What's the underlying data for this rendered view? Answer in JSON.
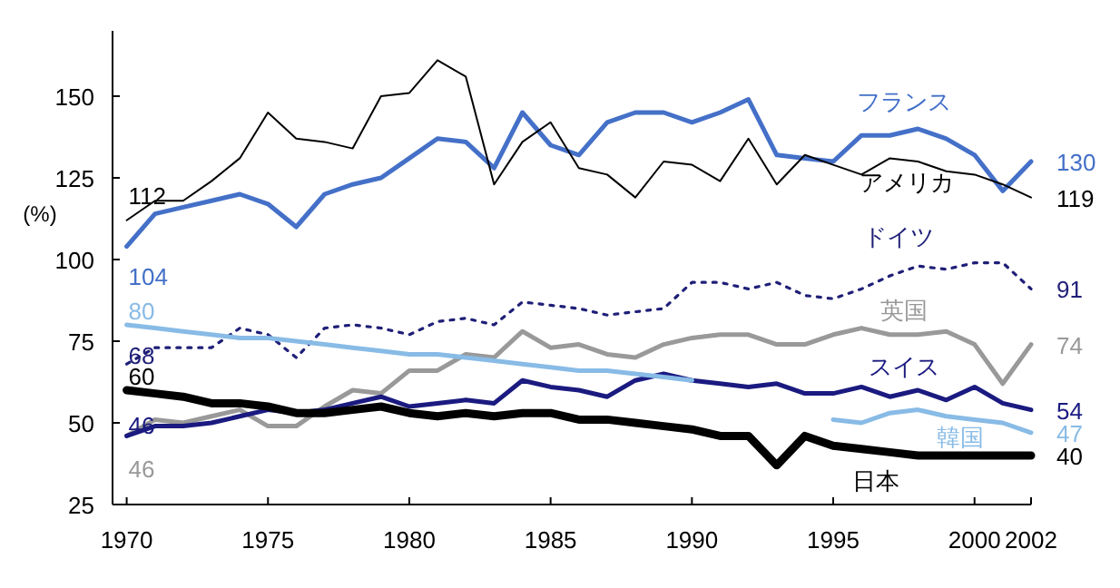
{
  "chart_data": {
    "type": "line",
    "ylabel": "(%)",
    "x": [
      1970,
      1971,
      1972,
      1973,
      1974,
      1975,
      1976,
      1977,
      1978,
      1979,
      1980,
      1981,
      1982,
      1983,
      1984,
      1985,
      1986,
      1987,
      1988,
      1989,
      1990,
      1991,
      1992,
      1993,
      1994,
      1995,
      1996,
      1997,
      1998,
      1999,
      2000,
      2001,
      2002
    ],
    "xlim": [
      1969.5,
      2002
    ],
    "xticks": [
      1970,
      1975,
      1980,
      1985,
      1990,
      1995,
      2000,
      2002
    ],
    "ylim": [
      25,
      170
    ],
    "yticks": [
      25,
      50,
      75,
      100,
      125,
      150
    ],
    "grid": false,
    "legend": false,
    "series": [
      {
        "name": "フランス",
        "color": "#4470c8",
        "line_style": "solid",
        "values": [
          104,
          114,
          116,
          118,
          120,
          117,
          110,
          120,
          123,
          125,
          131,
          137,
          136,
          128,
          145,
          135,
          132,
          142,
          145,
          145,
          142,
          145,
          149,
          132,
          131,
          130,
          138,
          138,
          140,
          137,
          132,
          121,
          130
        ],
        "value_labels": [
          "104",
          null,
          null,
          null,
          null,
          null,
          null,
          null,
          null,
          null,
          null,
          null,
          null,
          null,
          null,
          null,
          null,
          null,
          null,
          null,
          null,
          null,
          null,
          null,
          null,
          null,
          null,
          null,
          null,
          null,
          null,
          null,
          "130"
        ]
      },
      {
        "name": "アメリカ",
        "color": "#000000",
        "line_style": "solid",
        "values": [
          112,
          118,
          118,
          124,
          131,
          145,
          137,
          136,
          134,
          150,
          151,
          161,
          156,
          123,
          136,
          142,
          128,
          126,
          119,
          130,
          129,
          124,
          137,
          123,
          132,
          129,
          126,
          131,
          130,
          127,
          126,
          123,
          119
        ],
        "value_labels": [
          "112",
          null,
          null,
          null,
          null,
          null,
          null,
          null,
          null,
          null,
          null,
          null,
          null,
          null,
          null,
          null,
          null,
          null,
          null,
          null,
          null,
          null,
          null,
          null,
          null,
          null,
          null,
          null,
          null,
          null,
          null,
          null,
          "119"
        ]
      },
      {
        "name": "ドイツ",
        "color": "#1f1f78",
        "line_style": "dotted",
        "values": [
          68,
          73,
          73,
          73,
          79,
          77,
          70,
          79,
          80,
          79,
          77,
          81,
          82,
          80,
          87,
          86,
          85,
          83,
          84,
          85,
          93,
          93,
          91,
          93,
          89,
          88,
          91,
          95,
          98,
          97,
          99,
          99,
          91
        ],
        "value_labels": [
          "68",
          null,
          null,
          null,
          null,
          null,
          null,
          null,
          null,
          null,
          null,
          null,
          null,
          null,
          null,
          null,
          null,
          null,
          null,
          null,
          null,
          null,
          null,
          null,
          null,
          null,
          null,
          null,
          null,
          null,
          null,
          null,
          "91"
        ]
      },
      {
        "name": "英国",
        "color": "#999999",
        "line_style": "solid",
        "values": [
          46,
          51,
          50,
          52,
          54,
          49,
          49,
          55,
          60,
          59,
          66,
          66,
          71,
          70,
          78,
          73,
          74,
          71,
          70,
          74,
          76,
          77,
          77,
          74,
          74,
          77,
          79,
          77,
          77,
          78,
          74,
          62,
          74
        ],
        "value_labels": [
          "46",
          null,
          null,
          null,
          null,
          null,
          null,
          null,
          null,
          null,
          null,
          null,
          null,
          null,
          null,
          null,
          null,
          null,
          null,
          null,
          null,
          null,
          null,
          null,
          null,
          null,
          null,
          null,
          null,
          null,
          null,
          null,
          "74"
        ]
      },
      {
        "name": "スイス",
        "color": "#1a1a80",
        "line_style": "solid",
        "values": [
          46,
          49,
          49,
          50,
          52,
          54,
          53,
          54,
          56,
          58,
          55,
          56,
          57,
          56,
          63,
          61,
          60,
          58,
          63,
          65,
          63,
          62,
          61,
          62,
          59,
          59,
          61,
          58,
          60,
          57,
          61,
          56,
          54
        ],
        "value_labels": [
          "46",
          null,
          null,
          null,
          null,
          null,
          null,
          null,
          null,
          null,
          null,
          null,
          null,
          null,
          null,
          null,
          null,
          null,
          null,
          null,
          null,
          null,
          null,
          null,
          null,
          null,
          null,
          null,
          null,
          null,
          null,
          null,
          "54"
        ]
      },
      {
        "name": "韓国",
        "color": "#88bbe6",
        "line_style": "solid",
        "values": [
          80,
          79,
          78,
          77,
          76,
          76,
          75,
          74,
          73,
          72,
          71,
          71,
          70,
          69,
          68,
          67,
          66,
          66,
          65,
          64,
          63,
          null,
          null,
          null,
          null,
          51,
          50,
          53,
          54,
          52,
          51,
          50,
          47
        ],
        "value_labels": [
          "80",
          null,
          null,
          null,
          null,
          null,
          null,
          null,
          null,
          null,
          null,
          null,
          null,
          null,
          null,
          null,
          null,
          null,
          null,
          null,
          null,
          null,
          null,
          null,
          null,
          null,
          null,
          null,
          null,
          null,
          null,
          null,
          "47"
        ]
      },
      {
        "name": "日本",
        "color": "#000000",
        "line_style": "solid",
        "values": [
          60,
          59,
          58,
          56,
          56,
          55,
          53,
          53,
          54,
          55,
          53,
          52,
          53,
          52,
          53,
          53,
          51,
          51,
          50,
          49,
          48,
          46,
          46,
          37,
          46,
          43,
          42,
          41,
          40,
          40,
          40,
          40,
          40
        ],
        "value_labels": [
          "60",
          null,
          null,
          null,
          null,
          null,
          null,
          null,
          null,
          null,
          null,
          null,
          null,
          null,
          null,
          null,
          null,
          null,
          null,
          null,
          null,
          null,
          null,
          null,
          null,
          null,
          null,
          null,
          null,
          null,
          null,
          null,
          "40"
        ]
      }
    ]
  }
}
